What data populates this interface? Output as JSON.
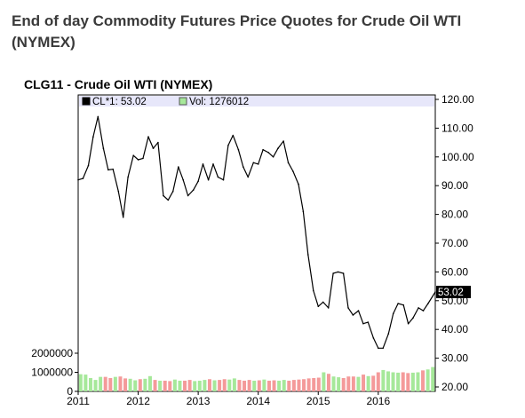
{
  "page": {
    "heading": "End of day Commodity Futures Price Quotes for Crude Oil WTI (NYMEX)"
  },
  "legend": {
    "price_label": "CL*1: 53.02",
    "volume_label": "Vol: 1276012",
    "price_swatch_color": "#000000",
    "volume_swatch_color": "#a6e89a"
  },
  "chart_data": {
    "type": "line",
    "title": "CLG11 - Crude Oil WTI (NYMEX)",
    "price_axis": {
      "side": "right",
      "ylim": [
        20,
        120
      ],
      "ticks": [
        120,
        110,
        100,
        90,
        80,
        70,
        60,
        50,
        40,
        30,
        20
      ],
      "tick_labels": [
        "120.00",
        "110.00",
        "100.00",
        "90.00",
        "80.00",
        "70.00",
        "60.00",
        "50.00",
        "40.00",
        "30.00",
        "20.00"
      ],
      "last_value": 53.02,
      "last_value_label": "53.02"
    },
    "volume_axis": {
      "side": "left",
      "ylim": [
        0,
        2500000
      ],
      "ticks": [
        0,
        1000000,
        2000000
      ],
      "tick_labels": [
        "0",
        "1000000",
        "2000000"
      ]
    },
    "x_axis": {
      "xlim": [
        2011.0,
        2016.95
      ],
      "ticks": [
        2011,
        2012,
        2013,
        2014,
        2015,
        2016
      ],
      "tick_labels": [
        "2011",
        "2012",
        "2013",
        "2014",
        "2015",
        "2016"
      ]
    },
    "grid": false,
    "legend_position": "top",
    "series": [
      {
        "name": "CL*1",
        "color": "#000000",
        "x": [
          2011.0,
          2011.08,
          2011.17,
          2011.25,
          2011.33,
          2011.42,
          2011.5,
          2011.58,
          2011.67,
          2011.75,
          2011.83,
          2011.92,
          2012.0,
          2012.08,
          2012.17,
          2012.25,
          2012.33,
          2012.42,
          2012.5,
          2012.58,
          2012.67,
          2012.75,
          2012.83,
          2012.92,
          2013.0,
          2013.08,
          2013.17,
          2013.25,
          2013.33,
          2013.42,
          2013.5,
          2013.58,
          2013.67,
          2013.75,
          2013.83,
          2013.92,
          2014.0,
          2014.08,
          2014.17,
          2014.25,
          2014.33,
          2014.42,
          2014.5,
          2014.58,
          2014.67,
          2014.75,
          2014.83,
          2014.92,
          2015.0,
          2015.08,
          2015.17,
          2015.25,
          2015.33,
          2015.42,
          2015.5,
          2015.58,
          2015.67,
          2015.75,
          2015.83,
          2015.92,
          2016.0,
          2016.08,
          2016.17,
          2016.25,
          2016.33,
          2016.42,
          2016.5,
          2016.58,
          2016.67,
          2016.75,
          2016.83,
          2016.95
        ],
        "values": [
          92,
          92.5,
          97,
          107,
          114,
          103,
          95.5,
          95.7,
          88,
          79,
          93,
          100.5,
          99,
          99.5,
          107,
          103,
          105,
          86.5,
          85,
          88,
          96.5,
          92,
          86.5,
          88.5,
          91.5,
          97.5,
          92,
          97.5,
          93,
          92,
          104,
          107.5,
          102.5,
          96.5,
          93,
          98,
          97.5,
          102.5,
          101.5,
          100,
          103,
          105.5,
          98,
          95,
          90.5,
          81,
          66,
          53.5,
          48,
          49.5,
          47.5,
          59.5,
          60,
          59.5,
          47.5,
          45,
          46.5,
          42,
          42.5,
          37,
          33.5,
          33.5,
          38.5,
          45.5,
          49,
          48.5,
          42,
          44,
          47.5,
          46.5,
          49,
          53.02
        ]
      },
      {
        "name": "Vol",
        "type": "bar",
        "up_color": "#a6e89a",
        "down_color": "#f49a9a",
        "values": [
          900000,
          880000,
          700000,
          600000,
          760000,
          760000,
          700000,
          760000,
          780000,
          680000,
          660000,
          580000,
          640000,
          660000,
          800000,
          600000,
          560000,
          560000,
          540000,
          620000,
          560000,
          560000,
          600000,
          540000,
          560000,
          600000,
          640000,
          580000,
          600000,
          640000,
          620000,
          680000,
          600000,
          560000,
          600000,
          560000,
          580000,
          620000,
          560000,
          580000,
          560000,
          600000,
          560000,
          600000,
          620000,
          640000,
          680000,
          700000,
          720000,
          1000000,
          920000,
          780000,
          740000,
          700000,
          780000,
          780000,
          760000,
          880000,
          800000,
          820000,
          1000000,
          1120000,
          1050000,
          1000000,
          980000,
          1000000,
          960000,
          980000,
          1000000,
          1100000,
          1150000,
          1276012
        ],
        "direction": [
          1,
          1,
          1,
          1,
          1,
          -1,
          -1,
          1,
          -1,
          -1,
          1,
          1,
          -1,
          1,
          1,
          -1,
          1,
          -1,
          -1,
          1,
          1,
          -1,
          -1,
          1,
          1,
          1,
          -1,
          1,
          -1,
          -1,
          1,
          1,
          -1,
          -1,
          -1,
          1,
          -1,
          1,
          -1,
          -1,
          1,
          1,
          -1,
          -1,
          -1,
          -1,
          -1,
          -1,
          -1,
          1,
          -1,
          1,
          1,
          -1,
          -1,
          -1,
          1,
          -1,
          1,
          -1,
          -1,
          1,
          1,
          1,
          1,
          -1,
          -1,
          1,
          1,
          -1,
          1,
          1
        ]
      }
    ]
  }
}
